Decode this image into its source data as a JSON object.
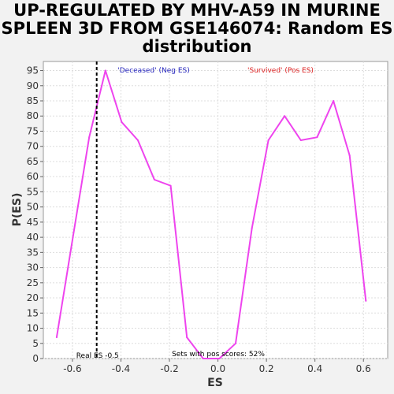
{
  "title_lines": [
    "UP-REGULATED BY MHV-A59 IN MURINE",
    "SPLEEN 3D FROM GSE146074: Random ES",
    "distribution"
  ],
  "chart_data": {
    "type": "line",
    "title": "UP-REGULATED BY MHV-A59 IN MURINE SPLEEN 3D FROM GSE146074: Random ES distribution",
    "xlabel": "ES",
    "ylabel": "P(ES)",
    "xlim": [
      -0.72,
      0.7
    ],
    "ylim": [
      0,
      98
    ],
    "x_ticks": [
      -0.6,
      -0.4,
      -0.2,
      0.0,
      0.2,
      0.4,
      0.6
    ],
    "x_tick_labels": [
      "-0.6",
      "-0.4",
      "-0.2",
      "0.0",
      "0.2",
      "0.4",
      "0.6"
    ],
    "y_ticks": [
      0,
      5,
      10,
      15,
      20,
      25,
      30,
      35,
      40,
      45,
      50,
      55,
      60,
      65,
      70,
      75,
      80,
      85,
      90,
      95
    ],
    "grid": true,
    "series": [
      {
        "color": "#ee44ee",
        "x": [
          -0.665,
          -0.598,
          -0.531,
          -0.464,
          -0.397,
          -0.33,
          -0.262,
          -0.195,
          -0.128,
          -0.061,
          0.006,
          0.073,
          0.14,
          0.208,
          0.275,
          0.342,
          0.409,
          0.476,
          0.543,
          0.61
        ],
        "y": [
          7,
          40,
          73,
          95,
          78,
          72,
          59,
          57,
          7,
          0,
          0,
          5,
          43,
          72,
          80,
          72,
          73,
          85,
          67,
          19
        ]
      }
    ],
    "real_es": {
      "x": -0.5,
      "label": "Real ES -0.5",
      "color": "#000000"
    },
    "annotations": {
      "neg_label": "'Deceased' (Neg ES)",
      "neg_color": "#2222bb",
      "pos_label": "'Survived' (Pos ES)",
      "pos_color": "#dd2222",
      "pos_scores": "Sets with pos scores: 52%"
    }
  }
}
